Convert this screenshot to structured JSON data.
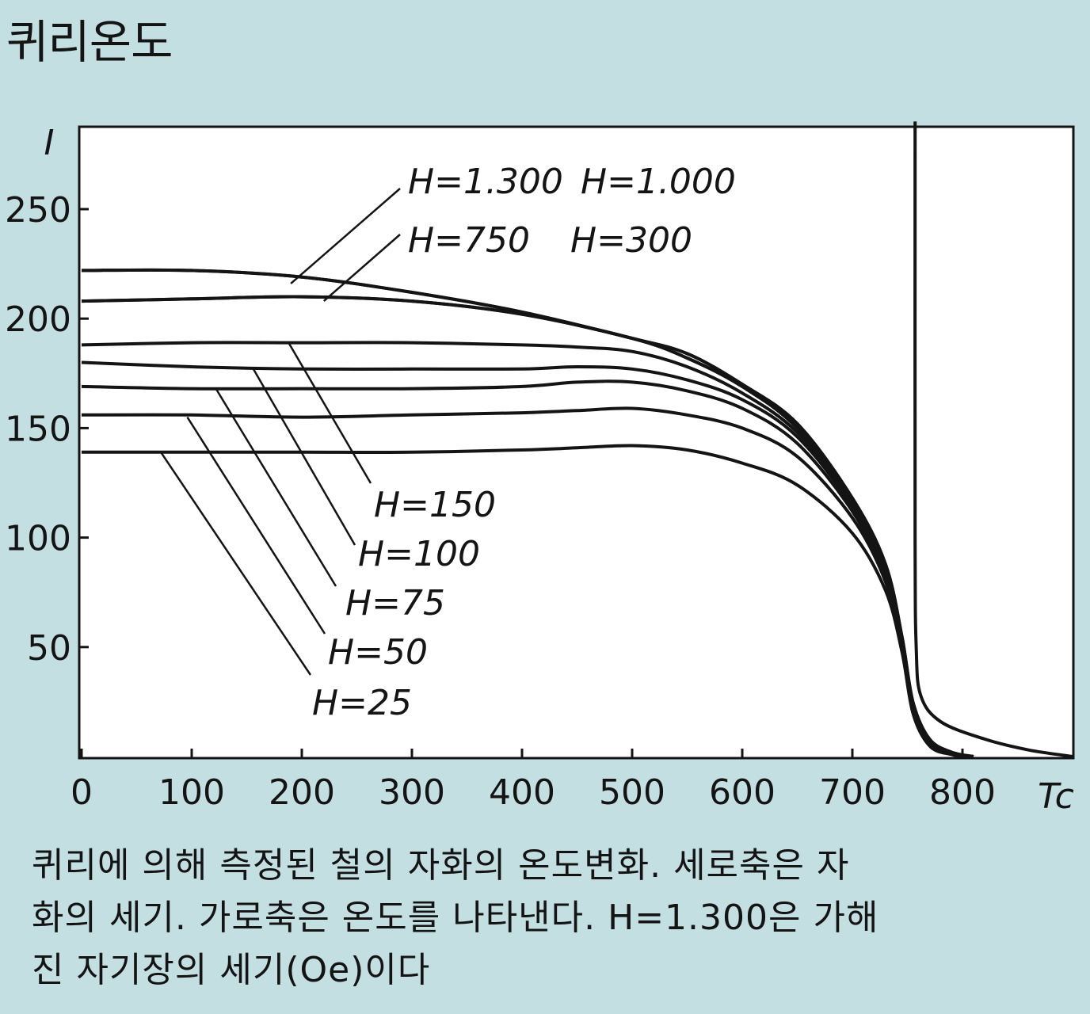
{
  "title": "퀴리온도",
  "caption_lines": [
    "퀴리에 의해 측정된 철의 자화의 온도변화. 세로축은 자",
    "화의 세기. 가로축은 온도를 나타낸다. H=1.300은 가해",
    "진 자기장의 세기(Oe)이다"
  ],
  "chart_data": {
    "type": "line",
    "ylabel": "I",
    "xlabel": "Tc",
    "xlim": [
      0,
      900
    ],
    "ylim": [
      0,
      290
    ],
    "x_ticks": [
      0,
      100,
      200,
      300,
      400,
      500,
      600,
      700,
      800
    ],
    "y_ticks": [
      50,
      100,
      150,
      200,
      250
    ],
    "grid": false,
    "vertical_line_x": 757,
    "series": [
      {
        "name": "H=1.300",
        "points": [
          [
            0,
            222
          ],
          [
            100,
            222
          ],
          [
            200,
            219
          ],
          [
            300,
            212
          ],
          [
            400,
            203
          ],
          [
            500,
            191
          ],
          [
            550,
            184
          ],
          [
            600,
            170
          ],
          [
            650,
            152
          ],
          [
            700,
            118
          ],
          [
            730,
            88
          ],
          [
            745,
            55
          ],
          [
            755,
            25
          ],
          [
            770,
            8
          ],
          [
            790,
            2
          ],
          [
            810,
            0
          ]
        ]
      },
      {
        "name": "H=1.000",
        "points": [
          [
            0,
            222
          ],
          [
            100,
            222
          ],
          [
            200,
            219
          ],
          [
            300,
            212
          ],
          [
            400,
            203
          ],
          [
            500,
            191
          ],
          [
            550,
            184
          ],
          [
            600,
            170
          ],
          [
            650,
            152
          ],
          [
            700,
            118
          ],
          [
            730,
            88
          ],
          [
            745,
            55
          ],
          [
            755,
            25
          ],
          [
            770,
            8
          ],
          [
            790,
            2
          ],
          [
            810,
            0
          ]
        ]
      },
      {
        "name": "H=750",
        "points": [
          [
            0,
            208
          ],
          [
            100,
            209
          ],
          [
            200,
            210
          ],
          [
            300,
            208
          ],
          [
            400,
            202
          ],
          [
            500,
            191
          ],
          [
            550,
            182
          ],
          [
            600,
            169
          ],
          [
            650,
            150
          ],
          [
            700,
            117
          ],
          [
            730,
            86
          ],
          [
            745,
            54
          ],
          [
            755,
            24
          ],
          [
            770,
            7
          ],
          [
            790,
            1
          ],
          [
            810,
            0
          ]
        ]
      },
      {
        "name": "H=300",
        "points": [
          [
            0,
            208
          ],
          [
            100,
            209
          ],
          [
            200,
            210
          ],
          [
            300,
            208
          ],
          [
            400,
            202
          ],
          [
            500,
            191
          ],
          [
            550,
            182
          ],
          [
            600,
            169
          ],
          [
            650,
            150
          ],
          [
            700,
            117
          ],
          [
            730,
            86
          ],
          [
            745,
            54
          ],
          [
            755,
            24
          ],
          [
            770,
            7
          ],
          [
            790,
            1
          ],
          [
            810,
            0
          ]
        ]
      },
      {
        "name": "H=150",
        "points": [
          [
            0,
            188
          ],
          [
            100,
            189
          ],
          [
            200,
            189
          ],
          [
            300,
            189
          ],
          [
            400,
            188
          ],
          [
            450,
            187
          ],
          [
            500,
            185
          ],
          [
            550,
            178
          ],
          [
            600,
            166
          ],
          [
            650,
            148
          ],
          [
            700,
            116
          ],
          [
            730,
            85
          ],
          [
            745,
            53
          ],
          [
            755,
            23
          ],
          [
            770,
            6
          ],
          [
            790,
            1
          ],
          [
            810,
            0
          ]
        ]
      },
      {
        "name": "H=100",
        "points": [
          [
            0,
            180
          ],
          [
            100,
            178
          ],
          [
            200,
            177
          ],
          [
            300,
            177
          ],
          [
            400,
            177
          ],
          [
            450,
            178
          ],
          [
            500,
            177
          ],
          [
            550,
            172
          ],
          [
            600,
            163
          ],
          [
            650,
            146
          ],
          [
            700,
            114
          ],
          [
            730,
            84
          ],
          [
            745,
            52
          ],
          [
            755,
            22
          ],
          [
            770,
            6
          ],
          [
            790,
            1
          ],
          [
            810,
            0
          ]
        ]
      },
      {
        "name": "H=75",
        "points": [
          [
            0,
            169
          ],
          [
            100,
            168
          ],
          [
            200,
            168
          ],
          [
            300,
            168
          ],
          [
            400,
            169
          ],
          [
            450,
            171
          ],
          [
            500,
            171
          ],
          [
            550,
            167
          ],
          [
            600,
            159
          ],
          [
            650,
            143
          ],
          [
            700,
            112
          ],
          [
            730,
            82
          ],
          [
            745,
            51
          ],
          [
            755,
            21
          ],
          [
            770,
            5
          ],
          [
            790,
            1
          ],
          [
            810,
            0
          ]
        ]
      },
      {
        "name": "H=50",
        "points": [
          [
            0,
            156
          ],
          [
            100,
            156
          ],
          [
            200,
            155
          ],
          [
            300,
            156
          ],
          [
            400,
            157
          ],
          [
            450,
            158
          ],
          [
            500,
            159
          ],
          [
            550,
            156
          ],
          [
            600,
            150
          ],
          [
            650,
            137
          ],
          [
            700,
            109
          ],
          [
            730,
            80
          ],
          [
            745,
            50
          ],
          [
            755,
            20
          ],
          [
            770,
            5
          ],
          [
            790,
            1
          ],
          [
            810,
            0
          ]
        ]
      },
      {
        "name": "H=25",
        "points": [
          [
            0,
            139
          ],
          [
            100,
            139
          ],
          [
            200,
            139
          ],
          [
            300,
            139
          ],
          [
            400,
            140
          ],
          [
            450,
            141
          ],
          [
            500,
            142
          ],
          [
            550,
            140
          ],
          [
            600,
            134
          ],
          [
            650,
            124
          ],
          [
            700,
            102
          ],
          [
            730,
            76
          ],
          [
            745,
            48
          ],
          [
            755,
            20
          ],
          [
            770,
            5
          ],
          [
            790,
            1
          ],
          [
            810,
            0
          ]
        ]
      },
      {
        "name": "",
        "points": [
          [
            757,
            290
          ],
          [
            757,
            100
          ],
          [
            758,
            50
          ],
          [
            762,
            28
          ],
          [
            780,
            16
          ],
          [
            820,
            8
          ],
          [
            860,
            3
          ],
          [
            900,
            0
          ]
        ]
      }
    ],
    "annotations": [
      {
        "label": "H=1.300",
        "target": [
          190,
          216
        ]
      },
      {
        "label": "H=1.000",
        "target": [
          190,
          216
        ]
      },
      {
        "label": "H=750",
        "target": [
          220,
          208
        ]
      },
      {
        "label": "H=300",
        "target": [
          220,
          208
        ]
      },
      {
        "label": "H=150",
        "target": [
          188,
          189
        ]
      },
      {
        "label": "H=100",
        "target": [
          156,
          177
        ]
      },
      {
        "label": "H=75",
        "target": [
          122,
          168
        ]
      },
      {
        "label": "H=50",
        "target": [
          96,
          155
        ]
      },
      {
        "label": "H=25",
        "target": [
          72,
          139
        ]
      }
    ]
  }
}
